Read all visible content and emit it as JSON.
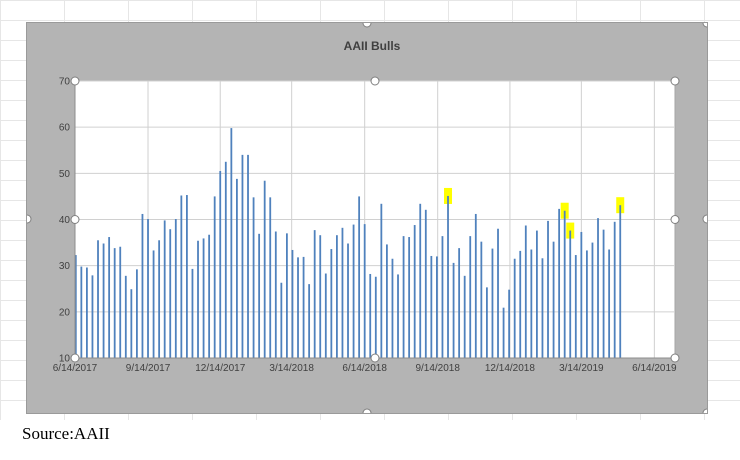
{
  "caption": "Source:AAII",
  "chart_data": {
    "type": "bar",
    "title": "AAII Bulls",
    "xlabel": "",
    "ylabel": "",
    "ylim": [
      10,
      70
    ],
    "yticks": [
      10,
      20,
      30,
      40,
      50,
      60,
      70
    ],
    "xrange": [
      "2017-06-14",
      "2019-07-10"
    ],
    "xtick_labels": [
      "6/14/2017",
      "9/14/2017",
      "12/14/2017",
      "3/14/2018",
      "6/14/2018",
      "9/14/2018",
      "12/14/2018",
      "3/14/2019",
      "6/14/2019"
    ],
    "grid": true,
    "bar_color": "#4f81bd",
    "highlight_color": "#ffff00",
    "series": [
      {
        "dates": [
          "2017-06-15",
          "2017-06-22",
          "2017-06-29",
          "2017-07-06",
          "2017-07-13",
          "2017-07-20",
          "2017-07-27",
          "2017-08-03",
          "2017-08-10",
          "2017-08-17",
          "2017-08-24",
          "2017-08-31",
          "2017-09-07",
          "2017-09-14",
          "2017-09-21",
          "2017-09-28",
          "2017-10-05",
          "2017-10-12",
          "2017-10-19",
          "2017-10-26",
          "2017-11-02",
          "2017-11-09",
          "2017-11-16",
          "2017-11-23",
          "2017-11-30",
          "2017-12-07",
          "2017-12-14",
          "2017-12-21",
          "2017-12-28",
          "2018-01-04",
          "2018-01-11",
          "2018-01-18",
          "2018-01-25",
          "2018-02-01",
          "2018-02-08",
          "2018-02-15",
          "2018-02-22",
          "2018-03-01",
          "2018-03-08",
          "2018-03-15",
          "2018-03-22",
          "2018-03-29",
          "2018-04-05",
          "2018-04-12",
          "2018-04-19",
          "2018-04-26",
          "2018-05-03",
          "2018-05-10",
          "2018-05-17",
          "2018-05-24",
          "2018-05-31",
          "2018-06-07",
          "2018-06-14",
          "2018-06-21",
          "2018-06-28",
          "2018-07-05",
          "2018-07-12",
          "2018-07-19",
          "2018-07-26",
          "2018-08-02",
          "2018-08-09",
          "2018-08-16",
          "2018-08-23",
          "2018-08-30",
          "2018-09-06",
          "2018-09-13",
          "2018-09-20",
          "2018-09-27",
          "2018-10-04",
          "2018-10-11",
          "2018-10-18",
          "2018-10-25",
          "2018-11-01",
          "2018-11-08",
          "2018-11-15",
          "2018-11-22",
          "2018-11-29",
          "2018-12-06",
          "2018-12-13",
          "2018-12-20",
          "2018-12-27",
          "2019-01-03",
          "2019-01-10",
          "2019-01-17",
          "2019-01-24",
          "2019-01-31",
          "2019-02-07",
          "2019-02-14",
          "2019-02-21",
          "2019-02-28",
          "2019-03-07",
          "2019-03-14",
          "2019-03-21",
          "2019-03-28",
          "2019-04-04",
          "2019-04-11",
          "2019-04-18",
          "2019-04-25",
          "2019-05-02"
        ],
        "values": [
          32.3,
          29.8,
          29.6,
          27.9,
          35.5,
          34.8,
          36.2,
          33.8,
          34.1,
          27.8,
          24.9,
          29.2,
          41.2,
          40.1,
          33.3,
          35.5,
          39.8,
          37.9,
          40.1,
          45.2,
          45.3,
          29.3,
          35.4,
          35.9,
          36.7,
          45.0,
          50.5,
          52.5,
          59.8,
          48.8,
          54.0,
          54.0,
          44.8,
          36.9,
          48.4,
          44.8,
          37.4,
          26.3,
          37.0,
          33.4,
          31.8,
          31.9,
          26.0,
          37.7,
          36.6,
          28.3,
          33.6,
          36.6,
          38.2,
          34.8,
          38.9,
          45.0,
          39.0,
          28.2,
          27.6,
          43.4,
          34.6,
          31.5,
          28.1,
          36.4,
          36.2,
          38.8,
          43.4,
          42.1,
          32.1,
          32.0,
          36.4,
          45.1,
          30.6,
          33.8,
          27.8,
          36.4,
          41.2,
          35.2,
          25.3,
          33.7,
          38.0,
          20.9,
          24.8,
          31.5,
          33.2,
          38.7,
          33.5,
          37.6,
          31.6,
          39.7,
          35.2,
          42.3,
          41.9,
          37.6,
          32.3,
          37.3,
          33.3,
          35.0,
          40.3,
          37.8,
          33.5,
          39.5,
          43.1
        ]
      }
    ],
    "highlights": [
      "2018-09-27",
      "2019-02-21",
      "2019-02-28",
      "2019-05-02"
    ]
  }
}
